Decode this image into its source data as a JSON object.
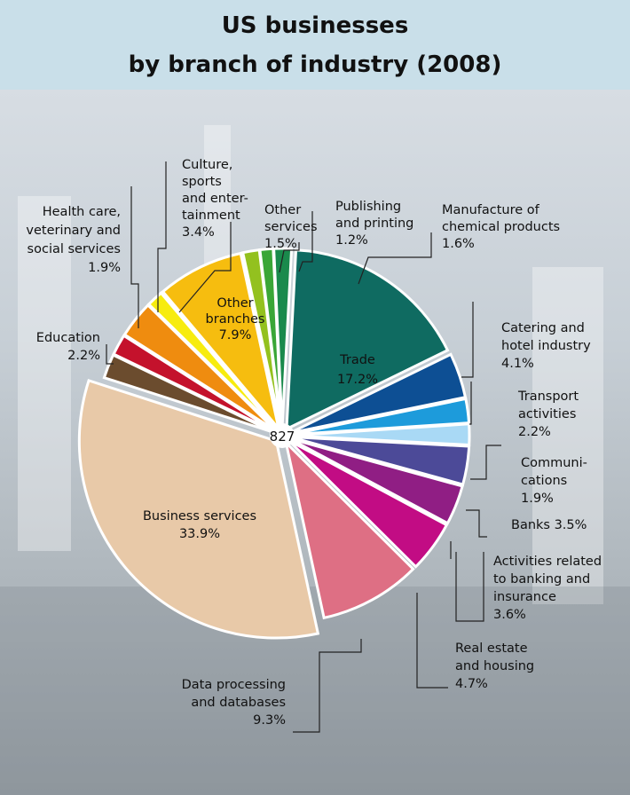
{
  "title_line1": "US businesses",
  "title_line2": "by branch of industry (2008)",
  "center_label": "827",
  "chart_data": {
    "type": "pie",
    "title": "US businesses by branch of industry (2008)",
    "total": 827,
    "unit": "%",
    "slices": [
      {
        "label": "Trade",
        "value": 17.2,
        "color": "#0f6b61"
      },
      {
        "label": "Catering and hotel industry",
        "value": 4.1,
        "color": "#0d4f94"
      },
      {
        "label": "Transport activities",
        "value": 2.2,
        "color": "#1d9bdb"
      },
      {
        "label": "Communications",
        "value": 1.9,
        "color": "#a9d9f5"
      },
      {
        "label": "Banks",
        "value": 3.5,
        "color": "#4c4a98"
      },
      {
        "label": "Activities related to banking and insurance",
        "value": 3.6,
        "color": "#901e84"
      },
      {
        "label": "Real estate and housing",
        "value": 4.7,
        "color": "#c20c84"
      },
      {
        "label": "Data processing and databases",
        "value": 9.3,
        "color": "#de6f84"
      },
      {
        "label": "Business services",
        "value": 33.9,
        "color": "#e8c9a8"
      },
      {
        "label": "Education",
        "value": 2.2,
        "color": "#6b4c2e"
      },
      {
        "label": "Health care, veterinary and social services",
        "value": 1.9,
        "color": "#c4122c"
      },
      {
        "label": "Culture, sports and entertainment",
        "value": 3.4,
        "color": "#ef8c0f"
      },
      {
        "label": "Other services",
        "value": 1.5,
        "color": "#f7ec0f"
      },
      {
        "label": "Other branches",
        "value": 7.9,
        "color": "#f6bd0f"
      },
      {
        "label": "Other services",
        "value": 1.5,
        "color": "#93c11f"
      },
      {
        "label": "Publishing and printing",
        "value": 1.2,
        "color": "#3aa637"
      },
      {
        "label": "Manufacture of chemical products",
        "value": 1.6,
        "color": "#1a8a4c"
      }
    ]
  },
  "labels": {
    "trade": [
      "Trade",
      "17.2%"
    ],
    "catering": [
      "Catering and",
      "hotel industry",
      "4.1%"
    ],
    "transport": [
      "Transport",
      "activities",
      "2.2%"
    ],
    "communications": [
      "Communi-",
      "cations",
      "1.9%"
    ],
    "banks": [
      "Banks 3.5%"
    ],
    "banking": [
      "Activities related",
      "to banking and",
      "insurance",
      "3.6%"
    ],
    "realestate": [
      "Real estate",
      "and housing",
      "4.7%"
    ],
    "dataprocessing": [
      "Data processing",
      "and databases",
      "9.3%"
    ],
    "business": [
      "Business services",
      "33.9%"
    ],
    "education": [
      "Education",
      "2.2%"
    ],
    "health": [
      "Health care,",
      "veterinary and",
      "social services",
      "1.9%"
    ],
    "culture": [
      "Culture,",
      "sports",
      "and enter-",
      "tainment",
      "3.4%"
    ],
    "otherservices": [
      "Other",
      "services",
      "1.5%"
    ],
    "otherbranches": [
      "Other",
      "branches",
      "7.9%"
    ],
    "publishing": [
      "Publishing",
      "and printing",
      "1.2%"
    ],
    "chemical": [
      "Manufacture of",
      "chemical products",
      "1.6%"
    ]
  }
}
